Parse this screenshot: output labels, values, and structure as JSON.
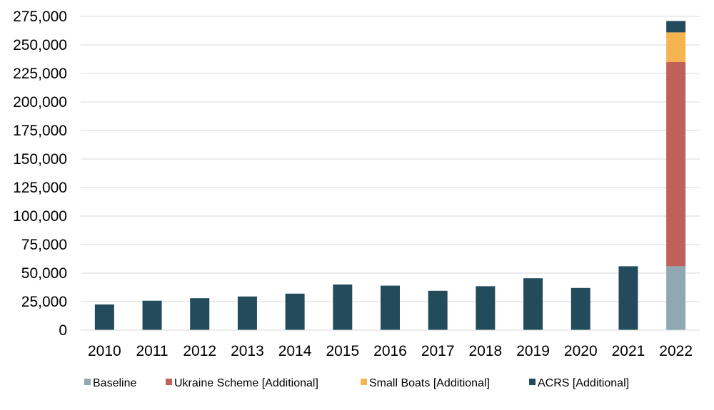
{
  "chart_data": {
    "type": "bar",
    "stacked": true,
    "categories": [
      "2010",
      "2011",
      "2012",
      "2013",
      "2014",
      "2015",
      "2016",
      "2017",
      "2018",
      "2019",
      "2020",
      "2021",
      "2022"
    ],
    "series": [
      {
        "name": "Baseline",
        "color": "#8FA8B2",
        "values": [
          null,
          null,
          null,
          null,
          null,
          null,
          null,
          null,
          null,
          null,
          null,
          null,
          56000
        ]
      },
      {
        "name": "Ukraine Scheme [Additional]",
        "color": "#C0605A",
        "values": [
          null,
          null,
          null,
          null,
          null,
          null,
          null,
          null,
          null,
          null,
          null,
          null,
          179000
        ]
      },
      {
        "name": "Small Boats [Additional]",
        "color": "#F4B550",
        "values": [
          null,
          null,
          null,
          null,
          null,
          null,
          null,
          null,
          null,
          null,
          null,
          null,
          26000
        ]
      },
      {
        "name": "ACRS [Additional]",
        "color": "#234B5C",
        "values": [
          null,
          null,
          null,
          null,
          null,
          null,
          null,
          null,
          null,
          null,
          null,
          null,
          10000
        ]
      }
    ],
    "totals_pre_2022": [
      22500,
      25800,
      28000,
      29500,
      32000,
      40000,
      39000,
      34500,
      38500,
      45500,
      37000,
      56000
    ],
    "pre_2022_color": "#234B5C",
    "ylim": [
      0,
      275000
    ],
    "yticks": [
      "0",
      "25,000",
      "50,000",
      "75,000",
      "100,000",
      "125,000",
      "150,000",
      "175,000",
      "200,000",
      "225,000",
      "250,000",
      "275,000"
    ],
    "ytick_values": [
      0,
      25000,
      50000,
      75000,
      100000,
      125000,
      150000,
      175000,
      200000,
      225000,
      250000,
      275000
    ],
    "grid": true,
    "legend_position": "bottom",
    "title": "",
    "xlabel": "",
    "ylabel": ""
  }
}
